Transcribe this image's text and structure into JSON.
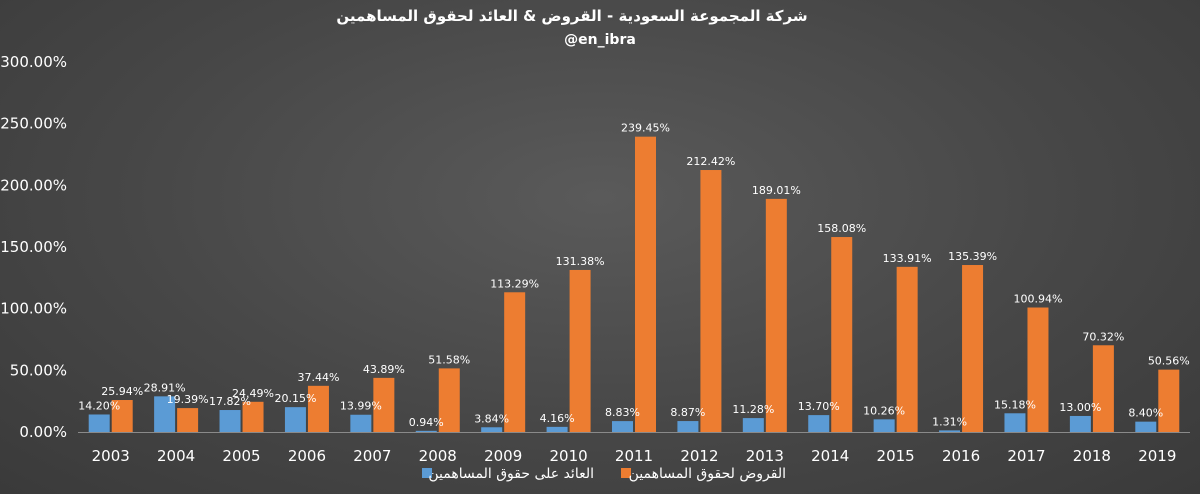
{
  "chart_data": {
    "type": "bar",
    "title": "شركة المجموعة السعودية - القروض & العائد لحقوق المساهمين",
    "subtitle": "@en_ibra",
    "categories": [
      "2003",
      "2004",
      "2005",
      "2006",
      "2007",
      "2008",
      "2009",
      "2010",
      "2011",
      "2012",
      "2013",
      "2014",
      "2015",
      "2016",
      "2017",
      "2018",
      "2019"
    ],
    "series": [
      {
        "name": "العائد على حقوق المساهمين",
        "color": "#5b9bd5",
        "values": [
          14.2,
          28.91,
          17.82,
          20.15,
          13.99,
          0.94,
          3.84,
          4.16,
          8.83,
          8.87,
          11.28,
          13.7,
          10.26,
          1.31,
          15.18,
          13.0,
          8.4
        ],
        "labels": [
          "14.20%",
          "28.91%",
          "17.82%",
          "20.15%",
          "13.99%",
          "0.94%",
          "3.84%",
          "4.16%",
          "8.83%",
          "8.87%",
          "11.28%",
          "13.70%",
          "10.26%",
          "1.31%",
          "15.18%",
          "13.00%",
          "8.40%"
        ]
      },
      {
        "name": "القروض لحقوق المساهمين",
        "color": "#ed7d31",
        "values": [
          25.94,
          19.39,
          24.49,
          37.44,
          43.89,
          51.58,
          113.29,
          131.38,
          239.45,
          212.42,
          189.01,
          158.08,
          133.91,
          135.39,
          100.94,
          70.32,
          50.56
        ],
        "labels": [
          "25.94%",
          "19.39%",
          "24.49%",
          "37.44%",
          "43.89%",
          "51.58%",
          "113.29%",
          "131.38%",
          "239.45%",
          "212.42%",
          "189.01%",
          "158.08%",
          "133.91%",
          "135.39%",
          "100.94%",
          "70.32%",
          "50.56%"
        ]
      }
    ],
    "ylim": [
      0,
      300
    ],
    "yticks": [
      "0.00%",
      "50.00%",
      "100.00%",
      "150.00%",
      "200.00%",
      "250.00%",
      "300.00%"
    ],
    "legend_position": "bottom",
    "grid": false
  }
}
